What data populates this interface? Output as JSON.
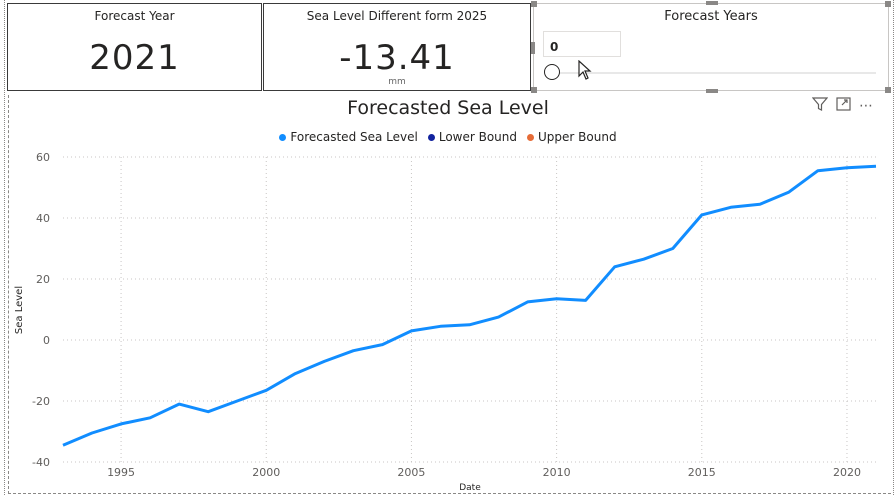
{
  "cards": {
    "forecast_year": {
      "title": "Forecast Year",
      "value": "2021"
    },
    "sea_level_diff": {
      "title": "Sea Level Different form 2025",
      "value": "-13.41",
      "unit": "mm"
    }
  },
  "slicer": {
    "title": "Forecast Years",
    "value": "0",
    "slider_fraction": 0
  },
  "toolbar": {
    "filter_icon": "filter-icon",
    "focus_icon": "focus-mode-icon",
    "more_icon": "more-options-icon",
    "more_glyph": "⋯"
  },
  "chart": {
    "title": "Forecasted Sea Level",
    "legend": [
      {
        "label": "Forecasted Sea Level",
        "color": "#118DFF"
      },
      {
        "label": "Lower Bound",
        "color": "#12239E"
      },
      {
        "label": "Upper Bound",
        "color": "#E66C37"
      }
    ]
  },
  "chart_data": {
    "type": "line",
    "title": "Forecasted Sea Level",
    "xlabel": "Date",
    "ylabel": "Sea Level",
    "xlim": [
      1993,
      2021
    ],
    "ylim": [
      -40,
      60
    ],
    "x_ticks": [
      "1995",
      "2000",
      "2005",
      "2010",
      "2015",
      "2020"
    ],
    "y_ticks": [
      "60",
      "40",
      "20",
      "0",
      "-20",
      "-40"
    ],
    "grid": true,
    "legend_position": "top-center",
    "series": [
      {
        "name": "Forecasted Sea Level",
        "color": "#118DFF",
        "x": [
          1993,
          1994,
          1995,
          1996,
          1997,
          1998,
          1999,
          2000,
          2001,
          2002,
          2003,
          2004,
          2005,
          2006,
          2007,
          2008,
          2009,
          2010,
          2011,
          2012,
          2013,
          2014,
          2015,
          2016,
          2017,
          2018,
          2019,
          2020,
          2021
        ],
        "y": [
          -34.5,
          -30.5,
          -27.5,
          -25.5,
          -21,
          -23.5,
          -20,
          -16.5,
          -11,
          -7,
          -3.5,
          -1.5,
          3,
          4.5,
          5,
          7.5,
          12.5,
          13.5,
          13,
          24,
          26.5,
          30,
          41,
          43.5,
          44.5,
          48.5,
          55.5,
          56.5,
          57
        ]
      },
      {
        "name": "Lower Bound",
        "color": "#12239E",
        "x": [],
        "y": []
      },
      {
        "name": "Upper Bound",
        "color": "#E66C37",
        "x": [],
        "y": []
      }
    ]
  }
}
